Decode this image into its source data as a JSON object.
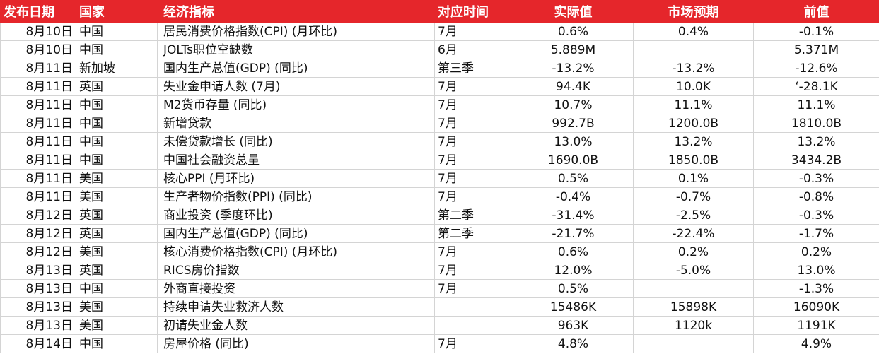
{
  "header": {
    "date": "发布日期",
    "country": "国家",
    "indicator": "经济指标",
    "period": "对应时间",
    "actual": "实际值",
    "expected": "市场预期",
    "previous": "前值"
  },
  "colors": {
    "header_background": "#e5262b",
    "header_text": "#ffffff",
    "grid_line": "#d4d4d4"
  },
  "rows": [
    {
      "date": "8月10日",
      "country": "中国",
      "indicator": "居民消费价格指数(CPI) (月环比)",
      "period": "7月",
      "actual": "0.6%",
      "expected": "0.4%",
      "previous": "-0.1%"
    },
    {
      "date": "8月10日",
      "country": "中国",
      "indicator": "JOLTs职位空缺数",
      "period": "6月",
      "actual": "5.889M",
      "expected": "",
      "previous": "5.371M"
    },
    {
      "date": "8月11日",
      "country": "新加坡",
      "indicator": "国内生产总值(GDP) (同比)",
      "period": "第三季",
      "actual": "-13.2%",
      "expected": "-13.2%",
      "previous": "-12.6%"
    },
    {
      "date": "8月11日",
      "country": "英国",
      "indicator": "失业金申请人数 (7月)",
      "period": "7月",
      "actual": "94.4K",
      "expected": "10.0K",
      "previous": "‘-28.1K"
    },
    {
      "date": "8月11日",
      "country": "中国",
      "indicator": "M2货币存量 (同比)",
      "period": "7月",
      "actual": "10.7%",
      "expected": "11.1%",
      "previous": "11.1%"
    },
    {
      "date": "8月11日",
      "country": "中国",
      "indicator": "新增贷款",
      "period": "7月",
      "actual": "992.7B",
      "expected": "1200.0B",
      "previous": "1810.0B"
    },
    {
      "date": "8月11日",
      "country": "中国",
      "indicator": "未偿贷款增长 (同比)",
      "period": "7月",
      "actual": "13.0%",
      "expected": "13.2%",
      "previous": "13.2%"
    },
    {
      "date": "8月11日",
      "country": "中国",
      "indicator": "中国社会融资总量",
      "period": "7月",
      "actual": "1690.0B",
      "expected": "1850.0B",
      "previous": "3434.2B"
    },
    {
      "date": "8月11日",
      "country": "美国",
      "indicator": "核心PPI (月环比)",
      "period": "7月",
      "actual": "0.5%",
      "expected": "0.1%",
      "previous": "-0.3%"
    },
    {
      "date": "8月11日",
      "country": "美国",
      "indicator": "生产者物价指数(PPI) (同比)",
      "period": "7月",
      "actual": "-0.4%",
      "expected": "-0.7%",
      "previous": "-0.8%"
    },
    {
      "date": "8月12日",
      "country": "英国",
      "indicator": "商业投资 (季度环比)",
      "period": "第二季",
      "actual": "-31.4%",
      "expected": "-2.5%",
      "previous": "-0.3%"
    },
    {
      "date": "8月12日",
      "country": "英国",
      "indicator": "国内生产总值(GDP) (同比)",
      "period": "第二季",
      "actual": "-21.7%",
      "expected": "-22.4%",
      "previous": "-1.7%"
    },
    {
      "date": "8月12日",
      "country": "美国",
      "indicator": "核心消费价格指数(CPI) (月环比)",
      "period": "7月",
      "actual": "0.6%",
      "expected": "0.2%",
      "previous": "0.2%"
    },
    {
      "date": "8月13日",
      "country": "英国",
      "indicator": "RICS房价指数",
      "period": "7月",
      "actual": "12.0%",
      "expected": "-5.0%",
      "previous": "13.0%"
    },
    {
      "date": "8月13日",
      "country": "中国",
      "indicator": "外商直接投资",
      "period": "7月",
      "actual": "0.5%",
      "expected": "",
      "previous": "-1.3%"
    },
    {
      "date": "8月13日",
      "country": "美国",
      "indicator": "持续申请失业救济人数",
      "period": "",
      "actual": "15486K",
      "expected": "15898K",
      "previous": "16090K"
    },
    {
      "date": "8月13日",
      "country": "美国",
      "indicator": "初请失业金人数",
      "period": "",
      "actual": "963K",
      "expected": "1120k",
      "previous": "1191K"
    },
    {
      "date": "8月14日",
      "country": "中国",
      "indicator": "房屋价格 (同比)",
      "period": "7月",
      "actual": "4.8%",
      "expected": "",
      "previous": "4.9%"
    }
  ]
}
